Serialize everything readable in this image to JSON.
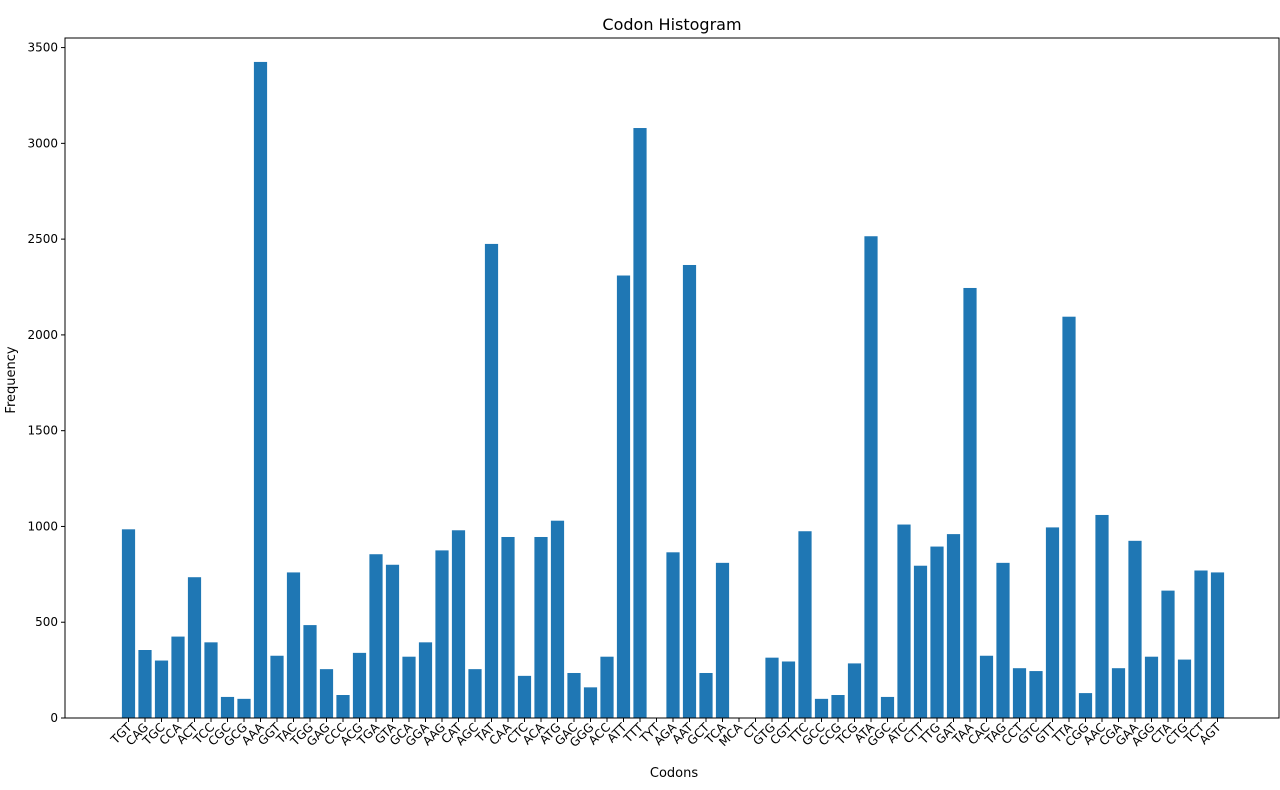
{
  "chart_data": {
    "type": "bar",
    "title": "Codon Histogram",
    "xlabel": "Codons",
    "ylabel": "Frequency",
    "ylim": [
      0,
      3550
    ],
    "yticks": [
      0,
      500,
      1000,
      1500,
      2000,
      2500,
      3000,
      3500
    ],
    "grid": false,
    "bar_color": "#1f77b4",
    "categories": [
      "TGT",
      "CAG",
      "TGC",
      "CCA",
      "ACT",
      "TCC",
      "CGC",
      "GCG",
      "AAA",
      "GGT",
      "TAC",
      "TGG",
      "GAG",
      "CCC",
      "ACG",
      "TGA",
      "GTA",
      "GCA",
      "GGA",
      "AAG",
      "CAT",
      "AGC",
      "TAT",
      "CAA",
      "CTC",
      "ACA",
      "ATG",
      "GAC",
      "GGG",
      "ACC",
      "ATT",
      "TTT",
      "TYT",
      "AGA",
      "AAT",
      "GCT",
      "TCA",
      "MCA",
      "CT",
      "GTG",
      "CGT",
      "TTC",
      "GCC",
      "CCG",
      "TCG",
      "ATA",
      "GGC",
      "ATC",
      "CTT",
      "TTG",
      "GAT",
      "TAA",
      "CAC",
      "TAG",
      "CCT",
      "GTC",
      "GTT",
      "TTA",
      "CGG",
      "AAC",
      "CGA",
      "GAA",
      "AGG",
      "CTA",
      "CTG",
      "TCT",
      "AGT"
    ],
    "values": [
      985,
      355,
      300,
      425,
      735,
      395,
      110,
      100,
      3425,
      325,
      760,
      485,
      255,
      120,
      340,
      855,
      800,
      320,
      395,
      875,
      980,
      255,
      2475,
      945,
      220,
      945,
      1030,
      235,
      160,
      320,
      2310,
      3080,
      0,
      865,
      2365,
      235,
      810,
      0,
      0,
      315,
      295,
      975,
      100,
      120,
      285,
      2515,
      110,
      1010,
      795,
      895,
      960,
      2245,
      325,
      810,
      260,
      245,
      995,
      2095,
      130,
      1060,
      260,
      925,
      320,
      665,
      305,
      770,
      760
    ]
  }
}
